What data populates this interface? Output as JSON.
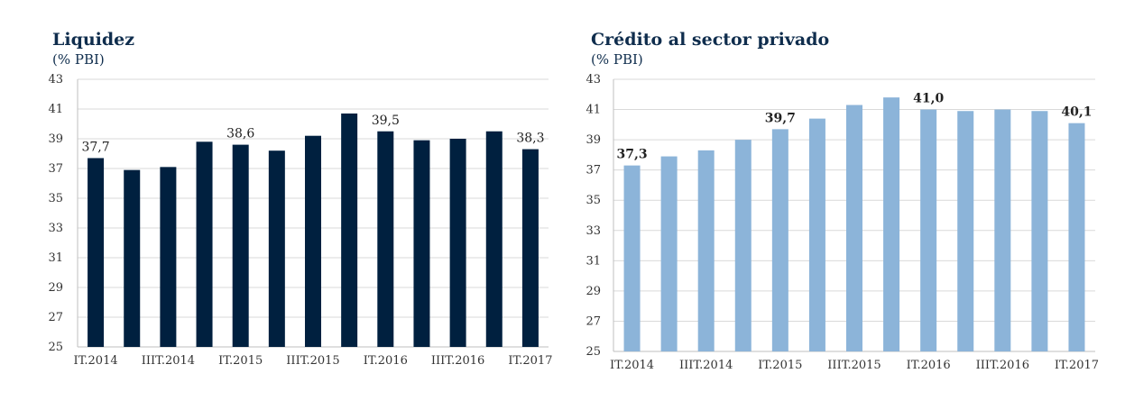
{
  "chart_data": [
    {
      "type": "bar",
      "title": "Liquidez",
      "subtitle": "(% PBI)",
      "categories": [
        "IT.2014",
        "",
        "IIIT.2014",
        "",
        "IT.2015",
        "",
        "IIIT.2015",
        "",
        "IT.2016",
        "",
        "IIIT.2016",
        "",
        "IT.2017"
      ],
      "values": [
        37.7,
        36.9,
        37.1,
        38.8,
        38.6,
        38.2,
        39.2,
        40.7,
        39.5,
        38.9,
        39.0,
        39.5,
        38.3
      ],
      "data_labels": [
        {
          "index": 0,
          "text": "37,7"
        },
        {
          "index": 4,
          "text": "38,6"
        },
        {
          "index": 8,
          "text": "39,5"
        },
        {
          "index": 12,
          "text": "38,3"
        }
      ],
      "yticks": [
        "43",
        "41",
        "39",
        "37",
        "35",
        "33",
        "31",
        "29",
        "27",
        "25"
      ],
      "ylim": [
        25,
        43
      ],
      "grid": true,
      "bar_color": "#00203f",
      "label_bold": false
    },
    {
      "type": "bar",
      "title": "Crédito al sector privado",
      "subtitle": "(% PBI)",
      "categories": [
        "IT.2014",
        "",
        "IIIT.2014",
        "",
        "IT.2015",
        "",
        "IIIT.2015",
        "",
        "IT.2016",
        "",
        "IIIT.2016",
        "",
        "IT.2017"
      ],
      "values": [
        37.3,
        37.9,
        38.3,
        39.0,
        39.7,
        40.4,
        41.3,
        41.8,
        41.0,
        40.9,
        41.0,
        40.9,
        40.1
      ],
      "data_labels": [
        {
          "index": 0,
          "text": "37,3"
        },
        {
          "index": 4,
          "text": "39,7"
        },
        {
          "index": 8,
          "text": "41,0"
        },
        {
          "index": 12,
          "text": "40,1"
        }
      ],
      "yticks": [
        "43",
        "41",
        "39",
        "37",
        "35",
        "33",
        "31",
        "29",
        "27",
        "25"
      ],
      "ylim": [
        25,
        43
      ],
      "grid": true,
      "bar_color": "#8cb4d9",
      "label_bold": true
    }
  ]
}
